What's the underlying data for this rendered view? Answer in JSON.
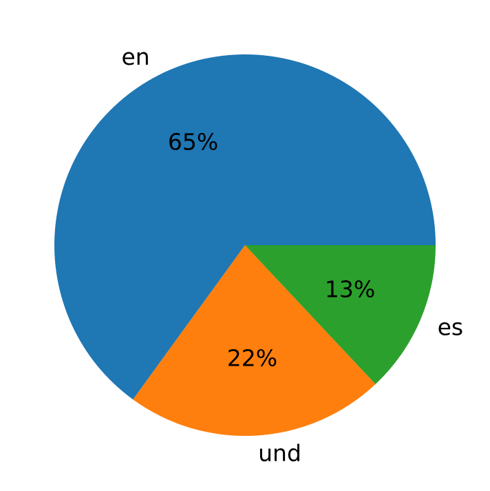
{
  "chart_data": {
    "type": "pie",
    "categories": [
      "en",
      "und",
      "es"
    ],
    "values": [
      65,
      22,
      13
    ],
    "value_labels": [
      "65%",
      "22%",
      "13%"
    ],
    "colors": [
      "#1f77b4",
      "#ff7f0e",
      "#2ca02c"
    ]
  }
}
